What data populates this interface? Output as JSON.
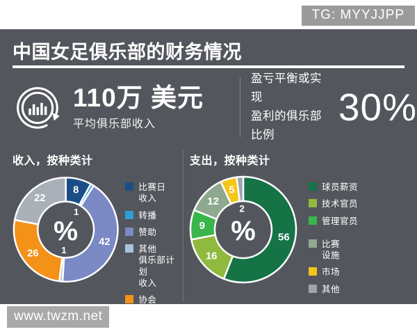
{
  "header": {
    "badge": "TG: MYYJJPP",
    "title": "中国女足俱乐部的财务情况"
  },
  "stats": {
    "avg_income_value": "110万 美元",
    "avg_income_label": "平均俱乐部收入",
    "breakeven_label": "盈亏平衡或实现\n盈利的俱乐部比例",
    "breakeven_value": "30%"
  },
  "footer": {
    "watermark": "www.twzm.net"
  },
  "colors": {
    "panel_background": "#53565c",
    "badge_gray": "#9b9b9b",
    "watermark_gray": "#a9a9a9"
  },
  "chart_data": [
    {
      "type": "pie",
      "variant": "donut",
      "title": "收入，按种类计",
      "center_label": "%",
      "unit": "percent",
      "legend_position": "right",
      "slices": [
        {
          "label": "比赛日\n收入",
          "value": 8,
          "color": "#1b4e87"
        },
        {
          "label": "转播",
          "value": 1,
          "color": "#2d9fd4"
        },
        {
          "label": "赞助",
          "value": 42,
          "color": "#7b89c5"
        },
        {
          "label": "其他\n俱乐部计划\n收入",
          "value": 1,
          "color": "#a8c4dc"
        },
        {
          "label": "协会",
          "value": 26,
          "color": "#f39119"
        },
        {
          "label": "其他",
          "value": 22,
          "color": "#a9b0b8"
        }
      ]
    },
    {
      "type": "pie",
      "variant": "donut",
      "title": "支出，按种类计",
      "center_label": "%",
      "unit": "percent",
      "legend_position": "right",
      "slices": [
        {
          "label": "球员薪资",
          "value": 56,
          "color": "#157346"
        },
        {
          "label": "技术官员",
          "value": 16,
          "color": "#8fba3e"
        },
        {
          "label": "管理官员",
          "value": 9,
          "color": "#3ab54a"
        },
        {
          "label": "比赛\n设施",
          "value": 12,
          "color": "#8ea990"
        },
        {
          "label": "市场",
          "value": 5,
          "color": "#f5c518"
        },
        {
          "label": "其他",
          "value": 2,
          "color": "#9da5ad"
        }
      ]
    }
  ]
}
